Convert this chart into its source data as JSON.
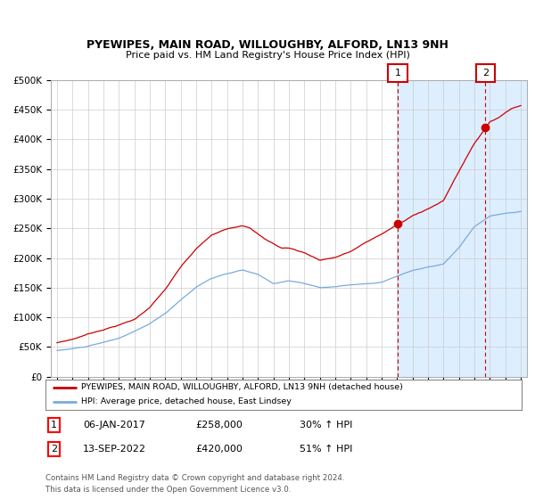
{
  "title": "PYEWIPES, MAIN ROAD, WILLOUGHBY, ALFORD, LN13 9NH",
  "subtitle": "Price paid vs. HM Land Registry's House Price Index (HPI)",
  "legend_red": "PYEWIPES, MAIN ROAD, WILLOUGHBY, ALFORD, LN13 9NH (detached house)",
  "legend_blue": "HPI: Average price, detached house, East Lindsey",
  "annotation1_date": "06-JAN-2017",
  "annotation1_price": "£258,000",
  "annotation1_hpi": "30% ↑ HPI",
  "annotation2_date": "13-SEP-2022",
  "annotation2_price": "£420,000",
  "annotation2_hpi": "51% ↑ HPI",
  "footer": "Contains HM Land Registry data © Crown copyright and database right 2024.\nThis data is licensed under the Open Government Licence v3.0.",
  "red_color": "#cc0000",
  "blue_color": "#7aaadd",
  "shade_color": "#ddeeff",
  "ylim": [
    0,
    500000
  ],
  "yticks": [
    0,
    50000,
    100000,
    150000,
    200000,
    250000,
    300000,
    350000,
    400000,
    450000,
    500000
  ],
  "ytick_labels": [
    "£0",
    "£50K",
    "£100K",
    "£150K",
    "£200K",
    "£250K",
    "£300K",
    "£350K",
    "£400K",
    "£450K",
    "£500K"
  ],
  "sale1_year": 2017.03,
  "sale1_value": 258000,
  "sale2_year": 2022.71,
  "sale2_value": 420000,
  "xmin": 1994.6,
  "xmax": 2025.4
}
